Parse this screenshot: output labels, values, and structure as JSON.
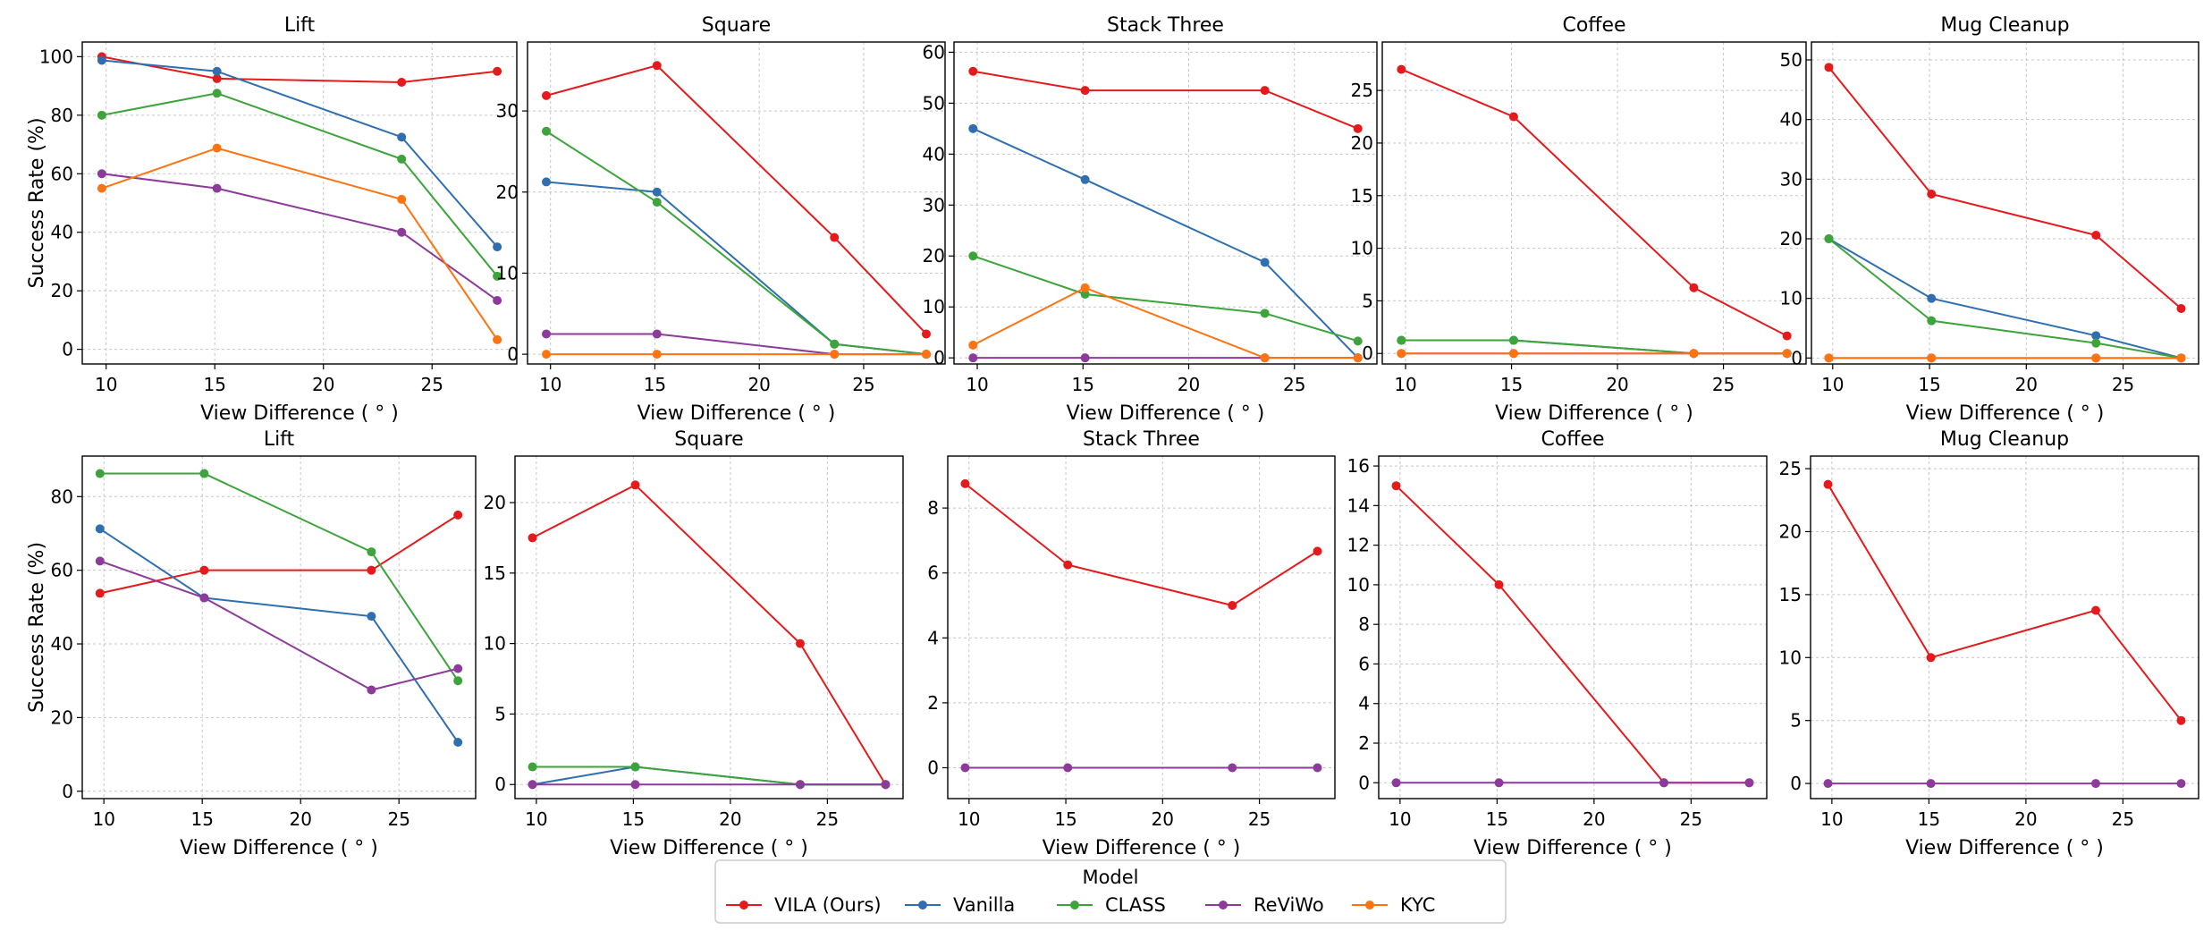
{
  "legend": {
    "title": "Model",
    "placement": "bottom-center",
    "entries": [
      {
        "name": "VILA (Ours)",
        "color": "#e41a1c"
      },
      {
        "name": "Vanilla",
        "color": "#2f6fb0"
      },
      {
        "name": "CLASS",
        "color": "#3ca43a"
      },
      {
        "name": "ReViWo",
        "color": "#8d3b9a"
      },
      {
        "name": "KYC",
        "color": "#ff7311"
      }
    ]
  },
  "chart_data": [
    {
      "type": "line",
      "title": "Lift",
      "xlabel": "View Difference ( ° )",
      "ylabel": "Success Rate (%)",
      "xlim": [
        8.9,
        28.9
      ],
      "xticks": [
        10,
        15,
        20,
        25
      ],
      "ylim": [
        -5,
        105
      ],
      "yticks": [
        0,
        20,
        40,
        60,
        80,
        100
      ],
      "grid": true,
      "x": [
        9.8,
        15.1,
        23.6,
        28.0
      ],
      "series": [
        {
          "name": "VILA (Ours)",
          "values": [
            100,
            92.5,
            91.25,
            95
          ]
        },
        {
          "name": "Vanilla",
          "values": [
            98.75,
            95,
            72.5,
            35
          ]
        },
        {
          "name": "CLASS",
          "values": [
            80,
            87.5,
            65,
            25
          ]
        },
        {
          "name": "ReViWo",
          "values": [
            60,
            55,
            40,
            16.7
          ]
        },
        {
          "name": "KYC",
          "values": [
            55,
            68.75,
            51.25,
            3.3
          ]
        }
      ]
    },
    {
      "type": "line",
      "title": "Square",
      "xlabel": "View Difference ( ° )",
      "ylabel": "",
      "xlim": [
        8.9,
        28.9
      ],
      "xticks": [
        10,
        15,
        20,
        25
      ],
      "ylim": [
        -1.2,
        38.5
      ],
      "yticks": [
        0,
        10,
        20,
        30
      ],
      "grid": true,
      "x": [
        9.8,
        15.1,
        23.6,
        28.0
      ],
      "series": [
        {
          "name": "VILA (Ours)",
          "values": [
            31.9,
            35.6,
            14.4,
            2.5
          ]
        },
        {
          "name": "Vanilla",
          "values": [
            21.25,
            20,
            1.25,
            0
          ]
        },
        {
          "name": "CLASS",
          "values": [
            27.5,
            18.75,
            1.25,
            0
          ]
        },
        {
          "name": "ReViWo",
          "values": [
            2.5,
            2.5,
            0,
            0
          ]
        },
        {
          "name": "KYC",
          "values": [
            0,
            0,
            0,
            0
          ]
        }
      ]
    },
    {
      "type": "line",
      "title": "Stack Three",
      "xlabel": "View Difference ( ° )",
      "ylabel": "",
      "xlim": [
        8.9,
        28.9
      ],
      "xticks": [
        10,
        15,
        20,
        25
      ],
      "ylim": [
        -1.2,
        62
      ],
      "yticks": [
        0,
        10,
        20,
        30,
        40,
        50,
        60
      ],
      "grid": true,
      "x": [
        9.8,
        15.1,
        23.6,
        28.0
      ],
      "series": [
        {
          "name": "VILA (Ours)",
          "values": [
            56.25,
            52.5,
            52.5,
            45
          ]
        },
        {
          "name": "Vanilla",
          "values": [
            45,
            35,
            18.75,
            0
          ]
        },
        {
          "name": "CLASS",
          "values": [
            20,
            12.5,
            8.75,
            3.3
          ]
        },
        {
          "name": "ReViWo",
          "values": [
            0,
            0,
            0,
            0
          ]
        },
        {
          "name": "KYC",
          "values": [
            2.5,
            13.75,
            0,
            0
          ]
        }
      ]
    },
    {
      "type": "line",
      "title": "Coffee",
      "xlabel": "View Difference ( ° )",
      "ylabel": "",
      "xlim": [
        8.9,
        28.9
      ],
      "xticks": [
        10,
        15,
        20,
        25
      ],
      "ylim": [
        -1,
        29.6
      ],
      "yticks": [
        0,
        5,
        10,
        15,
        20,
        25
      ],
      "grid": true,
      "x": [
        9.8,
        15.1,
        23.6,
        28.0
      ],
      "series": [
        {
          "name": "VILA (Ours)",
          "values": [
            27,
            22.5,
            6.25,
            1.67
          ]
        },
        {
          "name": "Vanilla",
          "values": [
            1.25,
            1.25,
            0,
            0
          ]
        },
        {
          "name": "CLASS",
          "values": [
            1.25,
            1.25,
            0,
            0
          ]
        },
        {
          "name": "ReViWo",
          "values": [
            0,
            0,
            0,
            0
          ]
        },
        {
          "name": "KYC",
          "values": [
            0,
            0,
            0,
            0
          ]
        }
      ]
    },
    {
      "type": "line",
      "title": "Mug Cleanup",
      "xlabel": "View Difference ( ° )",
      "ylabel": "",
      "xlim": [
        8.9,
        28.9
      ],
      "xticks": [
        10,
        15,
        20,
        25
      ],
      "ylim": [
        -1,
        53
      ],
      "yticks": [
        0,
        10,
        20,
        30,
        40,
        50
      ],
      "grid": true,
      "x": [
        9.8,
        15.1,
        23.6,
        28.0
      ],
      "series": [
        {
          "name": "VILA (Ours)",
          "values": [
            48.75,
            27.5,
            20.6,
            8.3
          ]
        },
        {
          "name": "Vanilla",
          "values": [
            20,
            10,
            3.75,
            0
          ]
        },
        {
          "name": "CLASS",
          "values": [
            20,
            6.25,
            2.5,
            0
          ]
        },
        {
          "name": "ReViWo",
          "values": [
            0,
            0,
            0,
            0
          ]
        },
        {
          "name": "KYC",
          "values": [
            0,
            0,
            0,
            0
          ]
        }
      ]
    },
    {
      "type": "line",
      "title": "Lift",
      "xlabel": "View Difference ( ° )",
      "ylabel": "Success Rate (%)",
      "xlim": [
        8.9,
        28.9
      ],
      "xticks": [
        10,
        15,
        20,
        25
      ],
      "ylim": [
        -2,
        91
      ],
      "yticks": [
        0,
        20,
        40,
        60,
        80
      ],
      "grid": true,
      "x": [
        9.8,
        15.1,
        23.6,
        28.0
      ],
      "series": [
        {
          "name": "VILA (Ours)",
          "values": [
            53.75,
            60,
            60,
            75
          ]
        },
        {
          "name": "Vanilla",
          "values": [
            71.25,
            52.5,
            47.5,
            13.3
          ]
        },
        {
          "name": "CLASS",
          "values": [
            86.25,
            86.25,
            65,
            30
          ]
        },
        {
          "name": "ReViWo",
          "values": [
            62.5,
            52.5,
            27.5,
            33.3
          ]
        }
      ]
    },
    {
      "type": "line",
      "title": "Square",
      "xlabel": "View Difference ( ° )",
      "ylabel": "",
      "xlim": [
        8.9,
        28.9
      ],
      "xticks": [
        10,
        15,
        20,
        25
      ],
      "ylim": [
        -1,
        23.3
      ],
      "yticks": [
        0,
        5,
        10,
        15,
        20
      ],
      "grid": true,
      "x": [
        9.8,
        15.1,
        23.6,
        28.0
      ],
      "series": [
        {
          "name": "VILA (Ours)",
          "values": [
            17.5,
            21.25,
            10,
            0
          ]
        },
        {
          "name": "Vanilla",
          "values": [
            0,
            1.25,
            0,
            0
          ]
        },
        {
          "name": "CLASS",
          "values": [
            1.25,
            1.25,
            0,
            0
          ]
        },
        {
          "name": "ReViWo",
          "values": [
            0,
            0,
            0,
            0
          ]
        }
      ]
    },
    {
      "type": "line",
      "title": "Stack Three",
      "xlabel": "View Difference ( ° )",
      "ylabel": "",
      "xlim": [
        8.9,
        28.9
      ],
      "xticks": [
        10,
        15,
        20,
        25
      ],
      "ylim": [
        -0.95,
        9.6
      ],
      "yticks": [
        0,
        2,
        4,
        6,
        8
      ],
      "grid": true,
      "x": [
        9.8,
        15.1,
        23.6,
        28.0
      ],
      "series": [
        {
          "name": "VILA (Ours)",
          "values": [
            8.75,
            6.25,
            5,
            6.67
          ]
        },
        {
          "name": "ReViWo",
          "values": [
            0,
            0,
            0,
            0
          ]
        }
      ]
    },
    {
      "type": "line",
      "title": "Coffee",
      "xlabel": "View Difference ( ° )",
      "ylabel": "",
      "xlim": [
        8.9,
        28.9
      ],
      "xticks": [
        10,
        15,
        20,
        25
      ],
      "ylim": [
        -0.8,
        16.5
      ],
      "yticks": [
        0,
        2,
        4,
        6,
        8,
        10,
        12,
        14,
        16
      ],
      "grid": true,
      "x": [
        9.8,
        15.1,
        23.6,
        28.0
      ],
      "series": [
        {
          "name": "VILA (Ours)",
          "values": [
            15,
            10,
            0,
            0
          ]
        },
        {
          "name": "ReViWo",
          "values": [
            0,
            0,
            0,
            0
          ]
        }
      ]
    },
    {
      "type": "line",
      "title": "Mug Cleanup",
      "xlabel": "View Difference ( ° )",
      "ylabel": "",
      "xlim": [
        8.9,
        28.9
      ],
      "xticks": [
        10,
        15,
        20,
        25
      ],
      "ylim": [
        -1.2,
        26
      ],
      "yticks": [
        0,
        5,
        10,
        15,
        20,
        25
      ],
      "grid": true,
      "x": [
        9.8,
        15.1,
        23.6,
        28.0
      ],
      "series": [
        {
          "name": "VILA (Ours)",
          "values": [
            23.75,
            10,
            13.75,
            5
          ]
        },
        {
          "name": "ReViWo",
          "values": [
            0,
            0,
            0,
            0
          ]
        }
      ]
    }
  ]
}
